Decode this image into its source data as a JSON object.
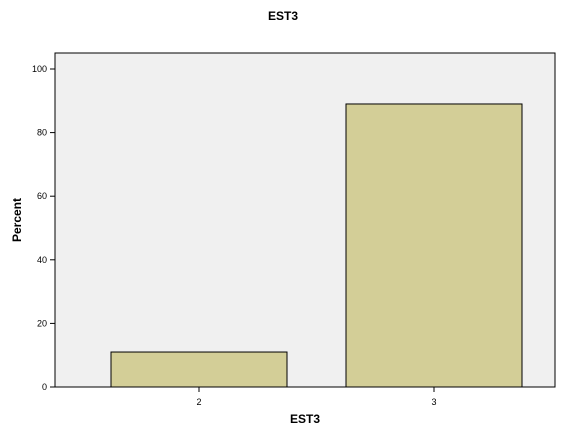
{
  "chart_data": {
    "type": "bar",
    "title": "EST3",
    "xlabel": "EST3",
    "ylabel": "Percent",
    "categories": [
      "2",
      "3"
    ],
    "values": [
      11,
      89
    ],
    "ylim": [
      0,
      100
    ],
    "yticks": [
      0,
      20,
      40,
      60,
      80,
      100
    ],
    "grid": false,
    "colors": {
      "bar": "#d3ce97",
      "plot_background": "#f0f0f0",
      "outline": "#000000"
    }
  }
}
